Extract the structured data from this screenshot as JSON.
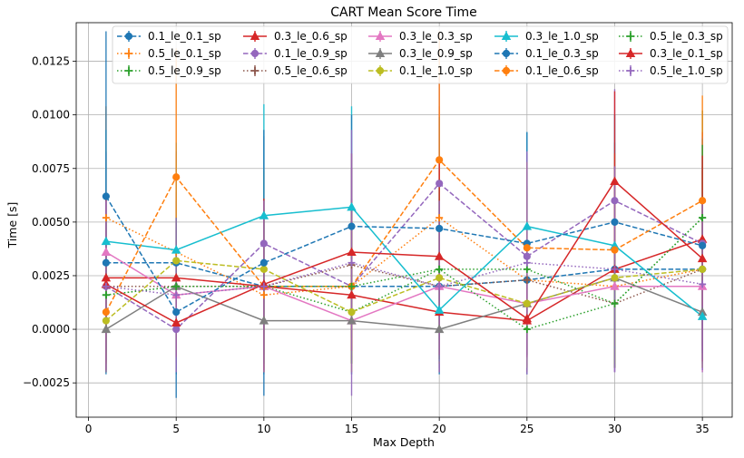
{
  "chart_data": {
    "type": "line",
    "title": "CART Mean Score Time",
    "xlabel": "Max Depth",
    "ylabel": "Time [s]",
    "x": [
      1,
      5,
      10,
      15,
      20,
      25,
      30,
      35
    ],
    "xlim": [
      -0.7,
      36.7
    ],
    "ylim": [
      -0.0041,
      0.0143
    ],
    "xticks": [
      0,
      5,
      10,
      15,
      20,
      25,
      30,
      35
    ],
    "yticks": [
      -0.0025,
      0.0,
      0.0025,
      0.005,
      0.0075,
      0.01,
      0.0125
    ],
    "ytick_labels": [
      "−0.0025",
      "0.0000",
      "0.0025",
      "0.0050",
      "0.0075",
      "0.0100",
      "0.0125"
    ],
    "grid": true,
    "legend_position": "top-right",
    "legend_columns": 5,
    "error_bars": true,
    "series": [
      {
        "name": "0.1_le_0.1_sp",
        "color": "#1f77b4",
        "linestyle": "dashed",
        "marker": "circle",
        "values": [
          0.0031,
          0.0031,
          0.002,
          0.002,
          0.002,
          0.0023,
          0.0028,
          0.0028
        ],
        "errors": [
          0.0052,
          0.0052,
          0.0041,
          0.0041,
          0.0041,
          0.0044,
          0.0048,
          0.0048
        ]
      },
      {
        "name": "0.5_le_0.1_sp",
        "color": "#ff7f0e",
        "linestyle": "dotted",
        "marker": "plus",
        "values": [
          0.0052,
          0.0036,
          0.0016,
          0.002,
          0.0052,
          0.0023,
          0.002,
          0.0028
        ],
        "errors": [
          0.0052,
          0.0046,
          0.0036,
          0.0036,
          0.0052,
          0.004,
          0.0036,
          0.0046
        ]
      },
      {
        "name": "0.5_le_0.9_sp",
        "color": "#2ca02c",
        "linestyle": "dotted",
        "marker": "plus",
        "values": [
          0.0016,
          0.002,
          0.002,
          0.0008,
          0.0028,
          0.0028,
          0.0012,
          0.0052
        ],
        "errors": [
          0.0036,
          0.004,
          0.004,
          0.0024,
          0.0046,
          0.0046,
          0.003,
          0.005
        ]
      },
      {
        "name": "0.3_le_0.6_sp",
        "color": "#d62728",
        "linestyle": "solid",
        "marker": "triangle",
        "values": [
          0.0024,
          0.0024,
          0.002,
          0.0016,
          0.0008,
          0.0004,
          0.0028,
          0.0042
        ],
        "errors": [
          0.004,
          0.004,
          0.004,
          0.003,
          0.0024,
          0.0016,
          0.0046,
          0.005
        ]
      },
      {
        "name": "0.1_le_0.9_sp",
        "color": "#9467bd",
        "linestyle": "dashed",
        "marker": "circle",
        "values": [
          0.002,
          0.0,
          0.004,
          0.002,
          0.0068,
          0.0034,
          0.006,
          0.004
        ],
        "errors": [
          0.004,
          0.002,
          0.005,
          0.0036,
          0.005,
          0.0048,
          0.0052,
          0.005
        ]
      },
      {
        "name": "0.5_le_0.6_sp",
        "color": "#8c564b",
        "linestyle": "dotted",
        "marker": "plus",
        "values": [
          0.002,
          0.002,
          0.002,
          0.003,
          0.002,
          0.0023,
          0.0012,
          0.0028
        ],
        "errors": [
          0.004,
          0.004,
          0.004,
          0.0045,
          0.004,
          0.0043,
          0.003,
          0.0046
        ]
      },
      {
        "name": "0.3_le_0.3_sp",
        "color": "#e377c2",
        "linestyle": "solid",
        "marker": "triangle",
        "values": [
          0.0036,
          0.0016,
          0.002,
          0.0004,
          0.002,
          0.0012,
          0.002,
          0.002
        ],
        "errors": [
          0.0046,
          0.0036,
          0.004,
          0.0016,
          0.004,
          0.003,
          0.004,
          0.004
        ]
      },
      {
        "name": "0.3_le_0.9_sp",
        "color": "#7f7f7f",
        "linestyle": "solid",
        "marker": "triangle",
        "values": [
          0.0,
          0.002,
          0.0004,
          0.0004,
          0.0,
          0.0012,
          0.0024,
          0.0008
        ],
        "errors": [
          0.002,
          0.004,
          0.0016,
          0.0016,
          0.002,
          0.003,
          0.004,
          0.0024
        ]
      },
      {
        "name": "0.1_le_1.0_sp",
        "color": "#bcbd22",
        "linestyle": "dashed",
        "marker": "circle",
        "values": [
          0.0004,
          0.0032,
          0.0028,
          0.0008,
          0.0024,
          0.0012,
          0.0024,
          0.0028
        ],
        "errors": [
          0.0016,
          0.0046,
          0.0046,
          0.0024,
          0.004,
          0.003,
          0.004,
          0.0046
        ]
      },
      {
        "name": "0.3_le_1.0_sp",
        "color": "#17becf",
        "linestyle": "solid",
        "marker": "triangle",
        "values": [
          0.0041,
          0.0037,
          0.0053,
          0.0057,
          0.0009,
          0.0048,
          0.0039,
          0.0006
        ],
        "errors": [
          0.0052,
          0.005,
          0.0052,
          0.0047,
          0.0024,
          0.0044,
          0.0048,
          0.002
        ]
      },
      {
        "name": "0.1_le_0.3_sp",
        "color": "#1f77b4",
        "linestyle": "dashed",
        "marker": "circle",
        "values": [
          0.0062,
          0.0008,
          0.0031,
          0.0048,
          0.0047,
          0.004,
          0.005,
          0.0039
        ],
        "errors": [
          0.0077,
          0.004,
          0.0062,
          0.0052,
          0.0052,
          0.0052,
          0.005,
          0.005
        ]
      },
      {
        "name": "0.1_le_0.6_sp",
        "color": "#ff7f0e",
        "linestyle": "dashed",
        "marker": "circle",
        "values": [
          0.0008,
          0.0071,
          0.002,
          0.002,
          0.0079,
          0.0038,
          0.0037,
          0.006
        ],
        "errors": [
          0.0024,
          0.006,
          0.004,
          0.004,
          0.006,
          0.004,
          0.0045,
          0.0049
        ]
      },
      {
        "name": "0.5_le_0.3_sp",
        "color": "#2ca02c",
        "linestyle": "dotted",
        "marker": "plus",
        "values": [
          0.0016,
          0.002,
          0.002,
          0.002,
          0.0028,
          0.0,
          0.0012,
          0.0052
        ],
        "errors": [
          0.0036,
          0.0032,
          0.0036,
          0.0036,
          0.0042,
          0.0012,
          0.003,
          0.0034
        ]
      },
      {
        "name": "0.3_le_0.1_sp",
        "color": "#d62728",
        "linestyle": "solid",
        "marker": "triangle",
        "values": [
          0.0021,
          0.0003,
          0.0021,
          0.0036,
          0.0034,
          0.0005,
          0.0069,
          0.0033
        ],
        "errors": [
          0.004,
          0.0016,
          0.004,
          0.0046,
          0.0046,
          0.0018,
          0.0042,
          0.0048
        ]
      },
      {
        "name": "0.5_le_1.0_sp",
        "color": "#9467bd",
        "linestyle": "dotted",
        "marker": "plus",
        "values": [
          0.002,
          0.0016,
          0.002,
          0.0031,
          0.002,
          0.0031,
          0.0028,
          0.0021
        ],
        "errors": [
          0.004,
          0.0036,
          0.004,
          0.0062,
          0.004,
          0.0052,
          0.0048,
          0.004
        ]
      }
    ]
  }
}
